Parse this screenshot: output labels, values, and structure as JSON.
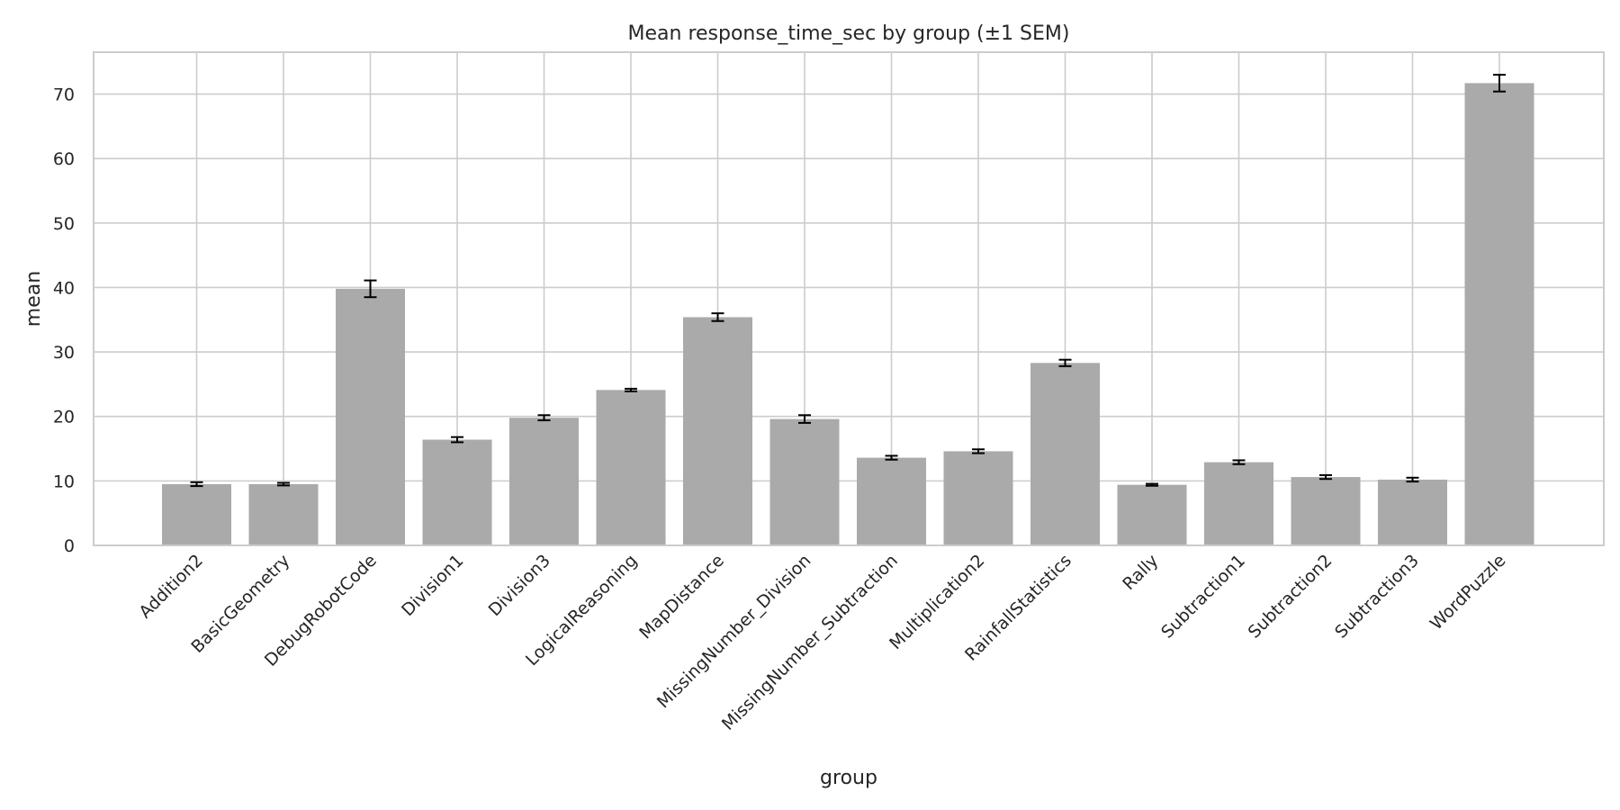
{
  "chart_data": {
    "type": "bar",
    "title": "Mean response_time_sec by group (±1 SEM)",
    "xlabel": "group",
    "ylabel": "mean",
    "categories": [
      "Addition2",
      "BasicGeometry",
      "DebugRobotCode",
      "Division1",
      "Division3",
      "LogicalReasoning",
      "MapDistance",
      "MissingNumber_Division",
      "MissingNumber_Subtraction",
      "Multiplication2",
      "RainfallStatistics",
      "Rally",
      "Subtraction1",
      "Subtraction2",
      "Subtraction3",
      "WordPuzzle"
    ],
    "series": [
      {
        "values": [
          9.5,
          9.5,
          39.8,
          16.4,
          19.8,
          24.1,
          35.4,
          19.6,
          13.6,
          14.6,
          28.3,
          9.4,
          12.9,
          10.6,
          10.2,
          71.7
        ],
        "errors": [
          0.3,
          0.2,
          1.3,
          0.4,
          0.4,
          0.2,
          0.6,
          0.6,
          0.3,
          0.3,
          0.5,
          0.15,
          0.3,
          0.3,
          0.3,
          1.3
        ]
      }
    ],
    "yticks": [
      0,
      10,
      20,
      30,
      40,
      50,
      60,
      70
    ],
    "ylim": [
      0,
      76.5
    ],
    "grid": true,
    "bar_color": "#aaaaaa",
    "error_color": "#000000",
    "grid_color": "#cccccc",
    "frame_color": "#cccccc"
  }
}
